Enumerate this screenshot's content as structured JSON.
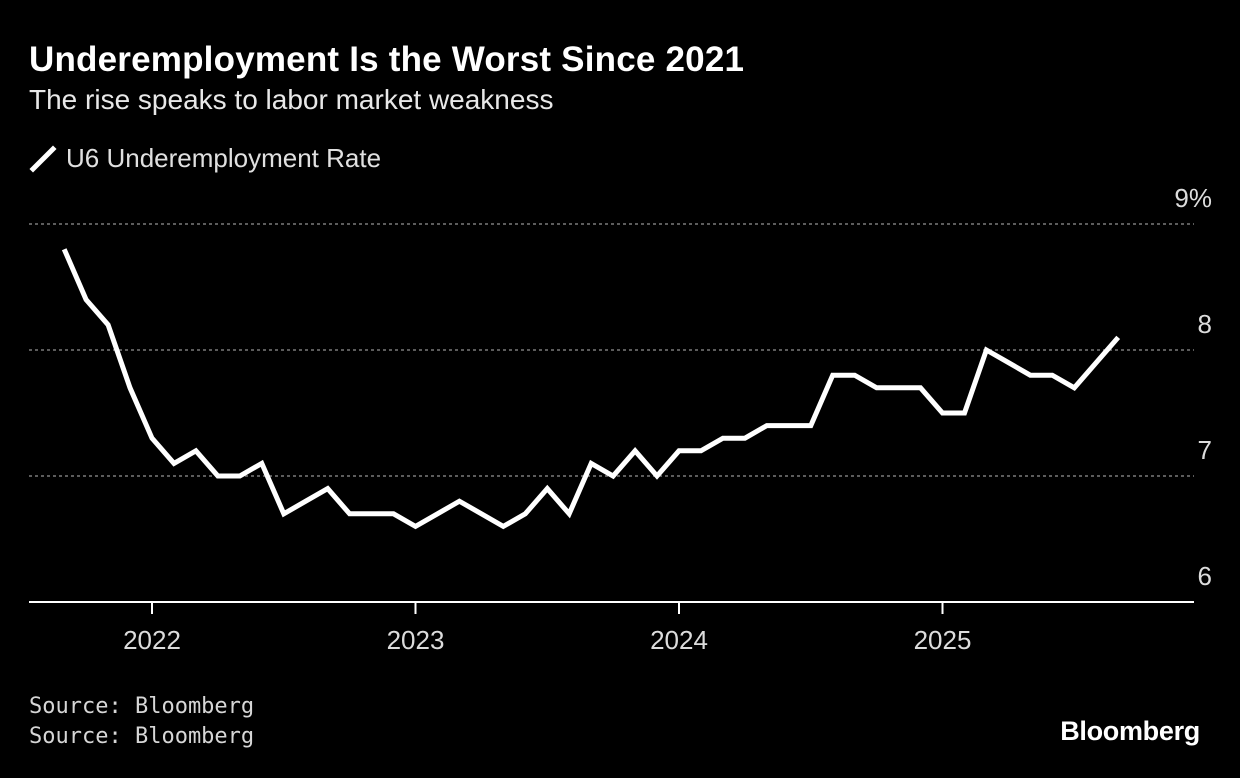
{
  "header": {
    "title": "Underemployment Is the Worst Since 2021",
    "subtitle": "The rise speaks to labor market weakness"
  },
  "legend": {
    "label": "U6 Underemployment Rate",
    "icon": "line-swatch-icon"
  },
  "footer": {
    "sources": [
      "Source: Bloomberg",
      "Source: Bloomberg"
    ],
    "logo": "Bloomberg"
  },
  "colors": {
    "background": "#000000",
    "line": "#ffffff",
    "grid": "#7a7a7a",
    "axis": "#ffffff"
  },
  "chart_data": {
    "type": "line",
    "title": "Underemployment Is the Worst Since 2021",
    "subtitle": "The rise speaks to labor market weakness",
    "ylim": [
      6,
      9
    ],
    "yticks": [
      {
        "value": 9,
        "label": "9%"
      },
      {
        "value": 8,
        "label": "8"
      },
      {
        "value": 7,
        "label": "7"
      },
      {
        "value": 6,
        "label": "6"
      }
    ],
    "xticks": [
      {
        "date": "2022-01",
        "label": "2022"
      },
      {
        "date": "2023-01",
        "label": "2023"
      },
      {
        "date": "2024-01",
        "label": "2024"
      },
      {
        "date": "2025-01",
        "label": "2025"
      }
    ],
    "xlim": [
      "2021-06",
      "2025-12"
    ],
    "grid": "horizontal dotted",
    "legend_position": "top-left",
    "series": [
      {
        "name": "U6 Underemployment Rate",
        "points": [
          [
            "2021-09",
            8.8
          ],
          [
            "2021-10",
            8.4
          ],
          [
            "2021-11",
            8.2
          ],
          [
            "2021-12",
            7.7
          ],
          [
            "2022-01",
            7.3
          ],
          [
            "2022-02",
            7.1
          ],
          [
            "2022-03",
            7.2
          ],
          [
            "2022-04",
            7.0
          ],
          [
            "2022-05",
            7.0
          ],
          [
            "2022-06",
            7.1
          ],
          [
            "2022-07",
            6.7
          ],
          [
            "2022-08",
            6.8
          ],
          [
            "2022-09",
            6.9
          ],
          [
            "2022-10",
            6.7
          ],
          [
            "2022-11",
            6.7
          ],
          [
            "2022-12",
            6.7
          ],
          [
            "2023-01",
            6.6
          ],
          [
            "2023-02",
            6.7
          ],
          [
            "2023-03",
            6.8
          ],
          [
            "2023-04",
            6.7
          ],
          [
            "2023-05",
            6.6
          ],
          [
            "2023-06",
            6.7
          ],
          [
            "2023-07",
            6.9
          ],
          [
            "2023-08",
            6.7
          ],
          [
            "2023-09",
            7.1
          ],
          [
            "2023-10",
            7.0
          ],
          [
            "2023-11",
            7.2
          ],
          [
            "2023-12",
            7.0
          ],
          [
            "2024-01",
            7.2
          ],
          [
            "2024-02",
            7.2
          ],
          [
            "2024-03",
            7.3
          ],
          [
            "2024-04",
            7.3
          ],
          [
            "2024-05",
            7.4
          ],
          [
            "2024-06",
            7.4
          ],
          [
            "2024-07",
            7.4
          ],
          [
            "2024-08",
            7.8
          ],
          [
            "2024-09",
            7.8
          ],
          [
            "2024-10",
            7.7
          ],
          [
            "2024-11",
            7.7
          ],
          [
            "2024-12",
            7.7
          ],
          [
            "2025-01",
            7.5
          ],
          [
            "2025-02",
            7.5
          ],
          [
            "2025-03",
            8.0
          ],
          [
            "2025-04",
            7.9
          ],
          [
            "2025-05",
            7.8
          ],
          [
            "2025-06",
            7.8
          ],
          [
            "2025-07",
            7.7
          ],
          [
            "2025-08",
            7.9
          ],
          [
            "2025-09",
            8.1
          ]
        ]
      }
    ]
  }
}
